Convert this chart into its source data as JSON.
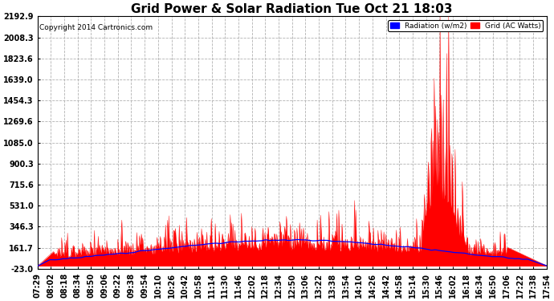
{
  "title": "Grid Power & Solar Radiation Tue Oct 21 18:03",
  "copyright": "Copyright 2014 Cartronics.com",
  "yticks": [
    2192.9,
    2008.3,
    1823.6,
    1639.0,
    1454.3,
    1269.6,
    1085.0,
    900.3,
    715.6,
    531.0,
    346.3,
    161.7,
    -23.0
  ],
  "ymin": -23.0,
  "ymax": 2192.9,
  "legend_labels": [
    "Radiation (w/m2)",
    "Grid (AC Watts)"
  ],
  "bg_color": "#ffffff",
  "grid_color": "#aaaaaa",
  "title_fontsize": 11,
  "tick_fontsize": 7,
  "xtick_labels": [
    "07:29",
    "08:02",
    "08:18",
    "08:34",
    "08:50",
    "09:06",
    "09:22",
    "09:38",
    "09:54",
    "10:10",
    "10:26",
    "10:42",
    "10:58",
    "11:14",
    "11:30",
    "11:46",
    "12:02",
    "12:18",
    "12:34",
    "12:50",
    "13:06",
    "13:22",
    "13:38",
    "13:54",
    "14:10",
    "14:26",
    "14:42",
    "14:58",
    "15:14",
    "15:30",
    "15:46",
    "16:02",
    "16:18",
    "16:34",
    "16:50",
    "17:06",
    "17:22",
    "17:38",
    "17:54"
  ]
}
